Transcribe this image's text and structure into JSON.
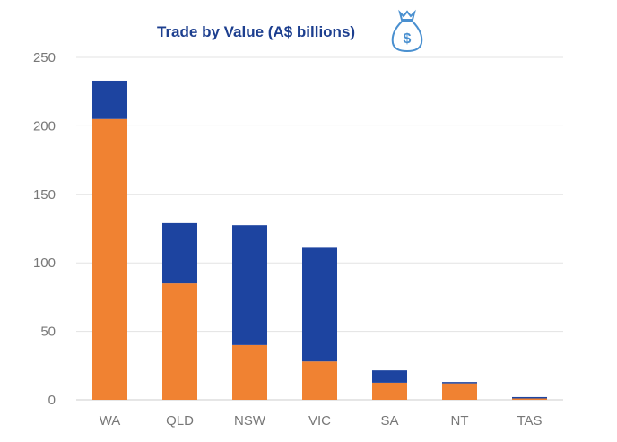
{
  "chart_data": {
    "type": "bar",
    "stacked": true,
    "title": "Trade by Value (A$ billions)",
    "title_icon": "money-bag-icon",
    "categories": [
      "WA",
      "QLD",
      "NSW",
      "VIC",
      "SA",
      "NT",
      "TAS"
    ],
    "series": [
      {
        "color": "#f08232",
        "values": [
          205,
          85,
          40,
          28,
          12.5,
          12,
          1
        ]
      },
      {
        "color": "#1d44a0",
        "values": [
          28,
          44,
          87.5,
          83,
          9,
          1,
          1
        ]
      }
    ],
    "xlabel": "",
    "ylabel": "",
    "ylim": [
      0,
      250
    ],
    "yticks": [
      0,
      50,
      100,
      150,
      200,
      250
    ],
    "grid": true,
    "legend": "none"
  }
}
